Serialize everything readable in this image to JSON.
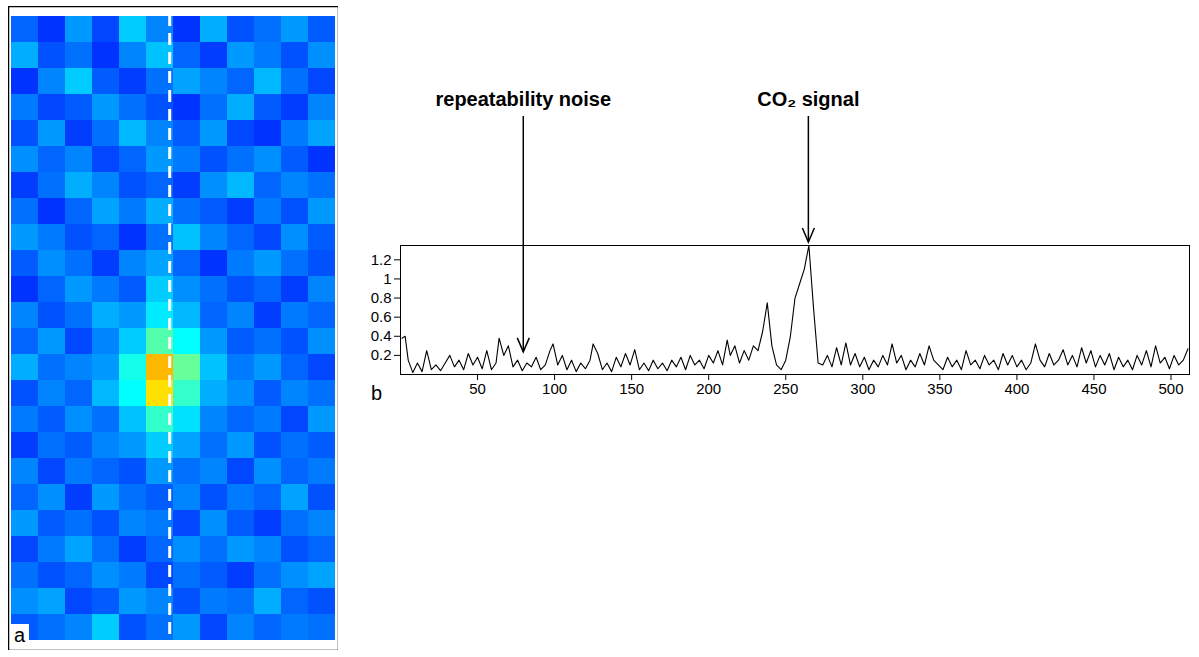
{
  "chart_data": [
    {
      "type": "heatmap",
      "panel_label": "a",
      "tick_labels": false,
      "clim": [
        0,
        1
      ],
      "cells": [
        [
          0.35,
          0.3,
          0.4,
          0.32,
          0.45,
          0.38,
          0.3,
          0.42,
          0.33,
          0.36,
          0.4,
          0.34
        ],
        [
          0.42,
          0.33,
          0.36,
          0.3,
          0.38,
          0.44,
          0.35,
          0.31,
          0.4,
          0.37,
          0.33,
          0.39
        ],
        [
          0.3,
          0.38,
          0.45,
          0.34,
          0.31,
          0.36,
          0.41,
          0.38,
          0.35,
          0.43,
          0.36,
          0.32
        ],
        [
          0.37,
          0.32,
          0.34,
          0.4,
          0.36,
          0.33,
          0.3,
          0.36,
          0.42,
          0.34,
          0.31,
          0.38
        ],
        [
          0.33,
          0.4,
          0.31,
          0.36,
          0.43,
          0.38,
          0.34,
          0.4,
          0.32,
          0.3,
          0.37,
          0.41
        ],
        [
          0.39,
          0.35,
          0.38,
          0.32,
          0.35,
          0.4,
          0.37,
          0.33,
          0.36,
          0.39,
          0.34,
          0.3
        ],
        [
          0.31,
          0.36,
          0.42,
          0.38,
          0.33,
          0.35,
          0.31,
          0.39,
          0.43,
          0.35,
          0.38,
          0.36
        ],
        [
          0.36,
          0.3,
          0.35,
          0.41,
          0.37,
          0.42,
          0.36,
          0.34,
          0.31,
          0.37,
          0.33,
          0.4
        ],
        [
          0.4,
          0.37,
          0.33,
          0.35,
          0.3,
          0.36,
          0.44,
          0.38,
          0.35,
          0.32,
          0.39,
          0.34
        ],
        [
          0.34,
          0.39,
          0.36,
          0.31,
          0.38,
          0.41,
          0.35,
          0.3,
          0.37,
          0.4,
          0.36,
          0.33
        ],
        [
          0.3,
          0.35,
          0.4,
          0.37,
          0.34,
          0.45,
          0.39,
          0.36,
          0.33,
          0.35,
          0.31,
          0.38
        ],
        [
          0.38,
          0.33,
          0.36,
          0.42,
          0.4,
          0.48,
          0.43,
          0.35,
          0.38,
          0.31,
          0.37,
          0.35
        ],
        [
          0.35,
          0.4,
          0.32,
          0.38,
          0.45,
          0.58,
          0.5,
          0.4,
          0.34,
          0.36,
          0.33,
          0.39
        ],
        [
          0.42,
          0.36,
          0.38,
          0.4,
          0.52,
          0.82,
          0.6,
          0.44,
          0.37,
          0.4,
          0.35,
          0.32
        ],
        [
          0.33,
          0.38,
          0.35,
          0.43,
          0.5,
          0.78,
          0.55,
          0.42,
          0.39,
          0.34,
          0.38,
          0.36
        ],
        [
          0.37,
          0.34,
          0.39,
          0.36,
          0.44,
          0.55,
          0.47,
          0.38,
          0.35,
          0.37,
          0.32,
          0.4
        ],
        [
          0.31,
          0.36,
          0.34,
          0.38,
          0.4,
          0.45,
          0.41,
          0.36,
          0.4,
          0.33,
          0.36,
          0.34
        ],
        [
          0.38,
          0.32,
          0.37,
          0.35,
          0.33,
          0.4,
          0.36,
          0.38,
          0.32,
          0.39,
          0.35,
          0.37
        ],
        [
          0.35,
          0.39,
          0.31,
          0.4,
          0.36,
          0.34,
          0.38,
          0.33,
          0.37,
          0.35,
          0.41,
          0.33
        ],
        [
          0.4,
          0.34,
          0.36,
          0.33,
          0.38,
          0.37,
          0.32,
          0.39,
          0.34,
          0.31,
          0.36,
          0.38
        ],
        [
          0.32,
          0.37,
          0.41,
          0.36,
          0.31,
          0.35,
          0.39,
          0.36,
          0.4,
          0.38,
          0.33,
          0.35
        ],
        [
          0.36,
          0.33,
          0.35,
          0.39,
          0.37,
          0.32,
          0.36,
          0.34,
          0.31,
          0.36,
          0.39,
          0.41
        ],
        [
          0.39,
          0.41,
          0.32,
          0.34,
          0.4,
          0.38,
          0.33,
          0.37,
          0.36,
          0.42,
          0.35,
          0.33
        ],
        [
          0.34,
          0.36,
          0.38,
          0.45,
          0.33,
          0.36,
          0.4,
          0.32,
          0.38,
          0.35,
          0.37,
          0.36
        ]
      ]
    },
    {
      "type": "line",
      "panel_label": "b",
      "color": "#000000",
      "grid": false,
      "xlim": [
        0,
        512
      ],
      "ylim": [
        0,
        1.35
      ],
      "xticks": [
        50,
        100,
        150,
        200,
        250,
        300,
        350,
        400,
        450,
        500
      ],
      "yticks": [
        0.2,
        0.4,
        0.6,
        0.8,
        1,
        1.2
      ],
      "annotations": [
        {
          "text": "repeatability noise",
          "x": 80,
          "y": 0.2
        },
        {
          "text": "CO₂ signal",
          "x": 265,
          "y": 1.35
        }
      ],
      "x": [
        1,
        3,
        5,
        8,
        11,
        14,
        17,
        20,
        23,
        26,
        29,
        32,
        35,
        38,
        41,
        44,
        47,
        50,
        53,
        56,
        59,
        62,
        64,
        67,
        70,
        73,
        76,
        79,
        82,
        85,
        88,
        91,
        94,
        97,
        99,
        102,
        105,
        108,
        111,
        114,
        117,
        120,
        123,
        125,
        128,
        131,
        134,
        137,
        140,
        143,
        146,
        149,
        152,
        155,
        158,
        161,
        164,
        167,
        170,
        173,
        176,
        179,
        182,
        185,
        188,
        191,
        194,
        197,
        200,
        203,
        206,
        209,
        212,
        214,
        217,
        220,
        223,
        226,
        229,
        232,
        235,
        238,
        241,
        244,
        247,
        250,
        253,
        256,
        259,
        262,
        265,
        268,
        271,
        274,
        277,
        280,
        283,
        286,
        289,
        292,
        295,
        298,
        301,
        304,
        307,
        310,
        313,
        316,
        319,
        322,
        325,
        328,
        331,
        334,
        337,
        340,
        343,
        346,
        349,
        352,
        355,
        358,
        361,
        364,
        367,
        370,
        373,
        376,
        379,
        382,
        385,
        388,
        391,
        394,
        397,
        400,
        403,
        406,
        409,
        412,
        415,
        418,
        421,
        424,
        427,
        430,
        433,
        436,
        439,
        442,
        445,
        448,
        451,
        454,
        457,
        460,
        463,
        466,
        469,
        472,
        475,
        478,
        481,
        484,
        487,
        490,
        493,
        496,
        499,
        502,
        505,
        508,
        511
      ],
      "values": [
        0.38,
        0.4,
        0.15,
        0.02,
        0.12,
        0.03,
        0.25,
        0.05,
        0.1,
        0.04,
        0.12,
        0.2,
        0.08,
        0.15,
        0.05,
        0.22,
        0.1,
        0.18,
        0.06,
        0.25,
        0.05,
        0.12,
        0.38,
        0.2,
        0.3,
        0.08,
        0.15,
        0.04,
        0.12,
        0.08,
        0.18,
        0.05,
        0.1,
        0.25,
        0.32,
        0.1,
        0.2,
        0.05,
        0.15,
        0.03,
        0.12,
        0.06,
        0.15,
        0.32,
        0.22,
        0.05,
        0.12,
        0.03,
        0.18,
        0.08,
        0.22,
        0.1,
        0.26,
        0.05,
        0.12,
        0.04,
        0.15,
        0.06,
        0.12,
        0.04,
        0.15,
        0.08,
        0.18,
        0.05,
        0.2,
        0.1,
        0.15,
        0.06,
        0.2,
        0.12,
        0.25,
        0.1,
        0.36,
        0.2,
        0.3,
        0.12,
        0.25,
        0.15,
        0.3,
        0.25,
        0.45,
        0.75,
        0.3,
        0.1,
        0.05,
        0.15,
        0.4,
        0.8,
        0.95,
        1.1,
        1.35,
        0.7,
        0.12,
        0.1,
        0.2,
        0.08,
        0.28,
        0.1,
        0.33,
        0.1,
        0.22,
        0.08,
        0.18,
        0.05,
        0.15,
        0.08,
        0.2,
        0.1,
        0.32,
        0.12,
        0.2,
        0.05,
        0.15,
        0.08,
        0.22,
        0.1,
        0.3,
        0.15,
        0.1,
        0.05,
        0.18,
        0.08,
        0.15,
        0.05,
        0.25,
        0.1,
        0.15,
        0.06,
        0.2,
        0.1,
        0.15,
        0.05,
        0.22,
        0.1,
        0.2,
        0.08,
        0.15,
        0.05,
        0.12,
        0.32,
        0.15,
        0.08,
        0.22,
        0.1,
        0.15,
        0.26,
        0.1,
        0.2,
        0.08,
        0.28,
        0.12,
        0.25,
        0.08,
        0.2,
        0.1,
        0.22,
        0.05,
        0.18,
        0.08,
        0.15,
        0.05,
        0.2,
        0.1,
        0.25,
        0.08,
        0.3,
        0.12,
        0.18,
        0.06,
        0.2,
        0.1,
        0.15,
        0.27
      ]
    }
  ]
}
